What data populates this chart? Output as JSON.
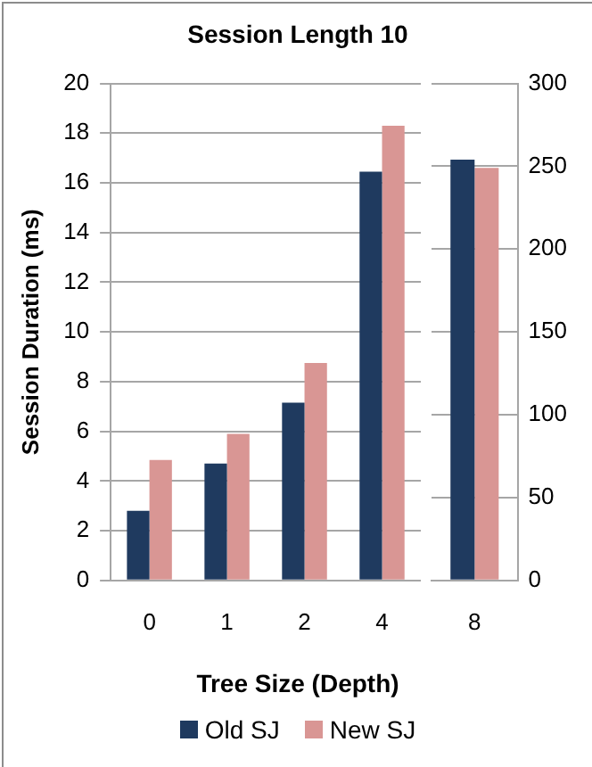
{
  "chart_data": [
    {
      "type": "bar",
      "title": "Session Length 10",
      "xlabel": "Tree Size (Depth)",
      "ylabel": "Session Duration (ms)",
      "categories": [
        "0",
        "1",
        "2",
        "4"
      ],
      "ylim": [
        0,
        20
      ],
      "yticks": [
        0,
        2,
        4,
        6,
        8,
        10,
        12,
        14,
        16,
        18,
        20
      ],
      "grid": "y",
      "legend": "bottom",
      "series": [
        {
          "name": "Old SJ",
          "color": "#1f3a5f",
          "values": [
            2.8,
            4.7,
            7.15,
            16.45
          ]
        },
        {
          "name": "New SJ",
          "color": "#d99694",
          "values": [
            4.85,
            5.9,
            8.75,
            18.3
          ]
        }
      ]
    },
    {
      "type": "bar",
      "categories": [
        "8"
      ],
      "y2lim": [
        0,
        300
      ],
      "y2ticks": [
        0,
        50,
        100,
        150,
        200,
        250,
        300
      ],
      "grid": "y",
      "series": [
        {
          "color": "#1f3a5f",
          "values": [
            254
          ],
          "axis": "y2"
        },
        {
          "color": "#d99694",
          "values": [
            249
          ],
          "axis": "y2"
        }
      ]
    }
  ]
}
